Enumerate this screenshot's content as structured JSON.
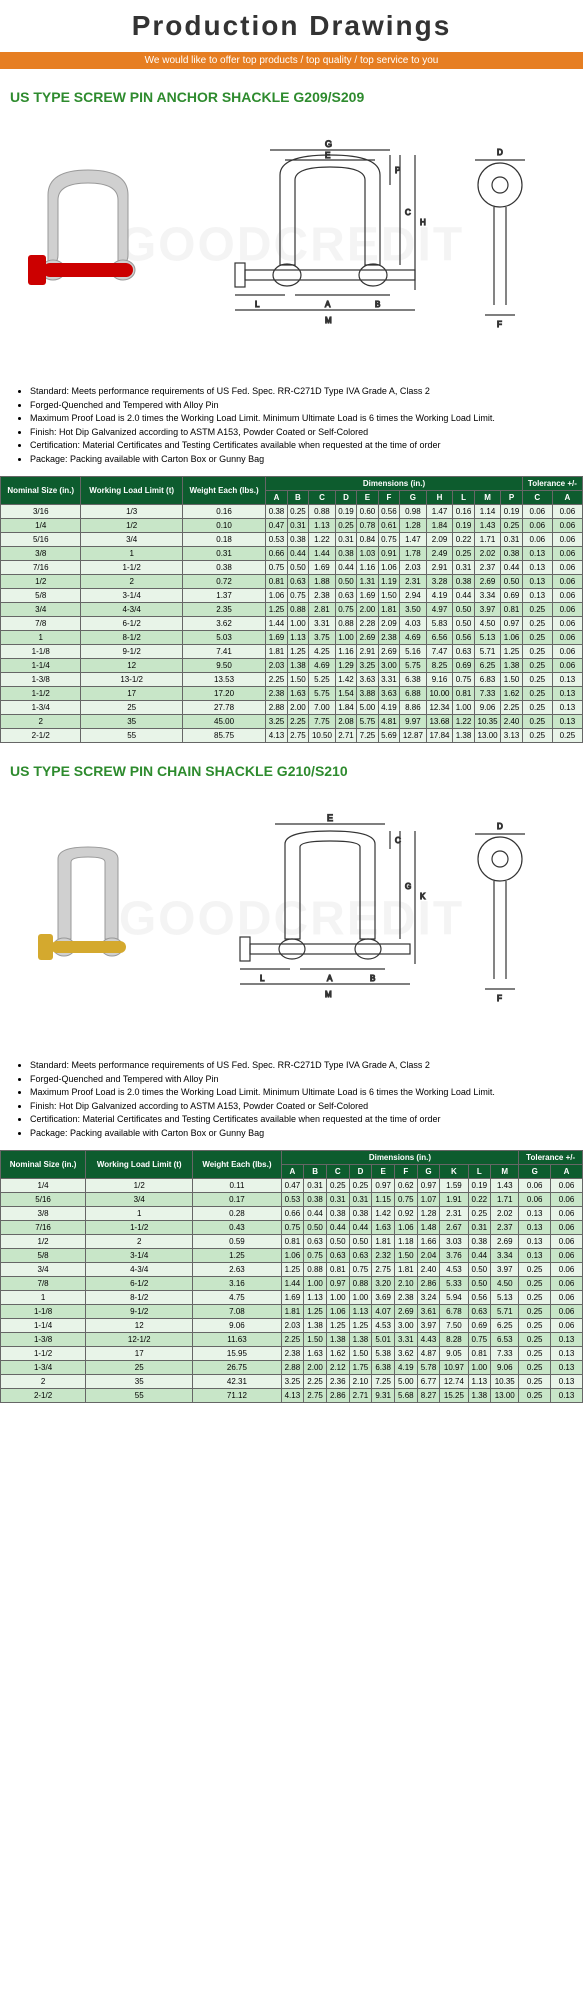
{
  "header": {
    "title": "Production Drawings",
    "subtitle": "We would like to offer top products / top quality / top service to you"
  },
  "watermark": "GOODCREDIT",
  "section1": {
    "title": "US TYPE SCREW PIN ANCHOR SHACKLE G209/S209",
    "bullets": [
      "Standard: Meets performance requirements of US Fed. Spec. RR-C271D Type IVA Grade A, Class 2",
      "Forged-Quenched and Tempered with Alloy Pin",
      "Maximum Proof Load is 2.0 times the Working Load Limit. Minimum Ultimate Load is 6 times the Working Load Limit.",
      "Finish: Hot Dip Galvanized according to ASTM A153, Powder Coated or Self-Colored",
      "Certification: Material Certificates and Testing Certificates available when requested at the time of order",
      "Package: Packing available with Carton Box or Gunny Bag"
    ],
    "headers": {
      "nom": "Nominal Size (in.)",
      "wll": "Working Load Limit (t)",
      "wt": "Weight Each (lbs.)",
      "dim": "Dimensions (in.)",
      "tol": "Tolerance +/-"
    },
    "dimcols": [
      "A",
      "B",
      "C",
      "D",
      "E",
      "F",
      "G",
      "H",
      "L",
      "M",
      "P"
    ],
    "tolcols": [
      "C",
      "A"
    ],
    "rows": [
      [
        "3/16",
        "1/3",
        "0.16",
        "0.38",
        "0.25",
        "0.88",
        "0.19",
        "0.60",
        "0.56",
        "0.98",
        "1.47",
        "0.16",
        "1.14",
        "0.19",
        "0.06",
        "0.06"
      ],
      [
        "1/4",
        "1/2",
        "0.10",
        "0.47",
        "0.31",
        "1.13",
        "0.25",
        "0.78",
        "0.61",
        "1.28",
        "1.84",
        "0.19",
        "1.43",
        "0.25",
        "0.06",
        "0.06"
      ],
      [
        "5/16",
        "3/4",
        "0.18",
        "0.53",
        "0.38",
        "1.22",
        "0.31",
        "0.84",
        "0.75",
        "1.47",
        "2.09",
        "0.22",
        "1.71",
        "0.31",
        "0.06",
        "0.06"
      ],
      [
        "3/8",
        "1",
        "0.31",
        "0.66",
        "0.44",
        "1.44",
        "0.38",
        "1.03",
        "0.91",
        "1.78",
        "2.49",
        "0.25",
        "2.02",
        "0.38",
        "0.13",
        "0.06"
      ],
      [
        "7/16",
        "1-1/2",
        "0.38",
        "0.75",
        "0.50",
        "1.69",
        "0.44",
        "1.16",
        "1.06",
        "2.03",
        "2.91",
        "0.31",
        "2.37",
        "0.44",
        "0.13",
        "0.06"
      ],
      [
        "1/2",
        "2",
        "0.72",
        "0.81",
        "0.63",
        "1.88",
        "0.50",
        "1.31",
        "1.19",
        "2.31",
        "3.28",
        "0.38",
        "2.69",
        "0.50",
        "0.13",
        "0.06"
      ],
      [
        "5/8",
        "3-1/4",
        "1.37",
        "1.06",
        "0.75",
        "2.38",
        "0.63",
        "1.69",
        "1.50",
        "2.94",
        "4.19",
        "0.44",
        "3.34",
        "0.69",
        "0.13",
        "0.06"
      ],
      [
        "3/4",
        "4-3/4",
        "2.35",
        "1.25",
        "0.88",
        "2.81",
        "0.75",
        "2.00",
        "1.81",
        "3.50",
        "4.97",
        "0.50",
        "3.97",
        "0.81",
        "0.25",
        "0.06"
      ],
      [
        "7/8",
        "6-1/2",
        "3.62",
        "1.44",
        "1.00",
        "3.31",
        "0.88",
        "2.28",
        "2.09",
        "4.03",
        "5.83",
        "0.50",
        "4.50",
        "0.97",
        "0.25",
        "0.06"
      ],
      [
        "1",
        "8-1/2",
        "5.03",
        "1.69",
        "1.13",
        "3.75",
        "1.00",
        "2.69",
        "2.38",
        "4.69",
        "6.56",
        "0.56",
        "5.13",
        "1.06",
        "0.25",
        "0.06"
      ],
      [
        "1-1/8",
        "9-1/2",
        "7.41",
        "1.81",
        "1.25",
        "4.25",
        "1.16",
        "2.91",
        "2.69",
        "5.16",
        "7.47",
        "0.63",
        "5.71",
        "1.25",
        "0.25",
        "0.06"
      ],
      [
        "1-1/4",
        "12",
        "9.50",
        "2.03",
        "1.38",
        "4.69",
        "1.29",
        "3.25",
        "3.00",
        "5.75",
        "8.25",
        "0.69",
        "6.25",
        "1.38",
        "0.25",
        "0.06"
      ],
      [
        "1-3/8",
        "13-1/2",
        "13.53",
        "2.25",
        "1.50",
        "5.25",
        "1.42",
        "3.63",
        "3.31",
        "6.38",
        "9.16",
        "0.75",
        "6.83",
        "1.50",
        "0.25",
        "0.13"
      ],
      [
        "1-1/2",
        "17",
        "17.20",
        "2.38",
        "1.63",
        "5.75",
        "1.54",
        "3.88",
        "3.63",
        "6.88",
        "10.00",
        "0.81",
        "7.33",
        "1.62",
        "0.25",
        "0.13"
      ],
      [
        "1-3/4",
        "25",
        "27.78",
        "2.88",
        "2.00",
        "7.00",
        "1.84",
        "5.00",
        "4.19",
        "8.86",
        "12.34",
        "1.00",
        "9.06",
        "2.25",
        "0.25",
        "0.13"
      ],
      [
        "2",
        "35",
        "45.00",
        "3.25",
        "2.25",
        "7.75",
        "2.08",
        "5.75",
        "4.81",
        "9.97",
        "13.68",
        "1.22",
        "10.35",
        "2.40",
        "0.25",
        "0.13"
      ],
      [
        "2-1/2",
        "55",
        "85.75",
        "4.13",
        "2.75",
        "10.50",
        "2.71",
        "7.25",
        "5.69",
        "12.87",
        "17.84",
        "1.38",
        "13.00",
        "3.13",
        "0.25",
        "0.25"
      ]
    ]
  },
  "section2": {
    "title": "US TYPE SCREW PIN CHAIN SHACKLE G210/S210",
    "bullets": [
      "Standard: Meets performance requirements of US Fed. Spec. RR-C271D Type IVA Grade A, Class 2",
      "Forged-Quenched and Tempered with Alloy Pin",
      "Maximum Proof Load is 2.0 times the Working Load Limit. Minimum Ultimate Load is 6 times the Working Load Limit.",
      "Finish: Hot Dip Galvanized according to ASTM A153, Powder Coated or Self-Colored",
      "Certification: Material Certificates and Testing Certificates available when requested at the time of order",
      "Package: Packing available with Carton Box or Gunny Bag"
    ],
    "headers": {
      "nom": "Nominal Size (in.)",
      "wll": "Working Load Limit (t)",
      "wt": "Weight Each (lbs.)",
      "dim": "Dimensions (in.)",
      "tol": "Tolerance +/-"
    },
    "dimcols": [
      "A",
      "B",
      "C",
      "D",
      "E",
      "F",
      "G",
      "K",
      "L",
      "M"
    ],
    "tolcols": [
      "G",
      "A"
    ],
    "rows": [
      [
        "1/4",
        "1/2",
        "0.11",
        "0.47",
        "0.31",
        "0.25",
        "0.25",
        "0.97",
        "0.62",
        "0.97",
        "1.59",
        "0.19",
        "1.43",
        "0.06",
        "0.06"
      ],
      [
        "5/16",
        "3/4",
        "0.17",
        "0.53",
        "0.38",
        "0.31",
        "0.31",
        "1.15",
        "0.75",
        "1.07",
        "1.91",
        "0.22",
        "1.71",
        "0.06",
        "0.06"
      ],
      [
        "3/8",
        "1",
        "0.28",
        "0.66",
        "0.44",
        "0.38",
        "0.38",
        "1.42",
        "0.92",
        "1.28",
        "2.31",
        "0.25",
        "2.02",
        "0.13",
        "0.06"
      ],
      [
        "7/16",
        "1-1/2",
        "0.43",
        "0.75",
        "0.50",
        "0.44",
        "0.44",
        "1.63",
        "1.06",
        "1.48",
        "2.67",
        "0.31",
        "2.37",
        "0.13",
        "0.06"
      ],
      [
        "1/2",
        "2",
        "0.59",
        "0.81",
        "0.63",
        "0.50",
        "0.50",
        "1.81",
        "1.18",
        "1.66",
        "3.03",
        "0.38",
        "2.69",
        "0.13",
        "0.06"
      ],
      [
        "5/8",
        "3-1/4",
        "1.25",
        "1.06",
        "0.75",
        "0.63",
        "0.63",
        "2.32",
        "1.50",
        "2.04",
        "3.76",
        "0.44",
        "3.34",
        "0.13",
        "0.06"
      ],
      [
        "3/4",
        "4-3/4",
        "2.63",
        "1.25",
        "0.88",
        "0.81",
        "0.75",
        "2.75",
        "1.81",
        "2.40",
        "4.53",
        "0.50",
        "3.97",
        "0.25",
        "0.06"
      ],
      [
        "7/8",
        "6-1/2",
        "3.16",
        "1.44",
        "1.00",
        "0.97",
        "0.88",
        "3.20",
        "2.10",
        "2.86",
        "5.33",
        "0.50",
        "4.50",
        "0.25",
        "0.06"
      ],
      [
        "1",
        "8-1/2",
        "4.75",
        "1.69",
        "1.13",
        "1.00",
        "1.00",
        "3.69",
        "2.38",
        "3.24",
        "5.94",
        "0.56",
        "5.13",
        "0.25",
        "0.06"
      ],
      [
        "1-1/8",
        "9-1/2",
        "7.08",
        "1.81",
        "1.25",
        "1.06",
        "1.13",
        "4.07",
        "2.69",
        "3.61",
        "6.78",
        "0.63",
        "5.71",
        "0.25",
        "0.06"
      ],
      [
        "1-1/4",
        "12",
        "9.06",
        "2.03",
        "1.38",
        "1.25",
        "1.25",
        "4.53",
        "3.00",
        "3.97",
        "7.50",
        "0.69",
        "6.25",
        "0.25",
        "0.06"
      ],
      [
        "1-3/8",
        "12-1/2",
        "11.63",
        "2.25",
        "1.50",
        "1.38",
        "1.38",
        "5.01",
        "3.31",
        "4.43",
        "8.28",
        "0.75",
        "6.53",
        "0.25",
        "0.13"
      ],
      [
        "1-1/2",
        "17",
        "15.95",
        "2.38",
        "1.63",
        "1.62",
        "1.50",
        "5.38",
        "3.62",
        "4.87",
        "9.05",
        "0.81",
        "7.33",
        "0.25",
        "0.13"
      ],
      [
        "1-3/4",
        "25",
        "26.75",
        "2.88",
        "2.00",
        "2.12",
        "1.75",
        "6.38",
        "4.19",
        "5.78",
        "10.97",
        "1.00",
        "9.06",
        "0.25",
        "0.13"
      ],
      [
        "2",
        "35",
        "42.31",
        "3.25",
        "2.25",
        "2.36",
        "2.10",
        "7.25",
        "5.00",
        "6.77",
        "12.74",
        "1.13",
        "10.35",
        "0.25",
        "0.13"
      ],
      [
        "2-1/2",
        "55",
        "71.12",
        "4.13",
        "2.75",
        "2.86",
        "2.71",
        "9.31",
        "5.68",
        "8.27",
        "15.25",
        "1.38",
        "13.00",
        "0.25",
        "0.13"
      ]
    ]
  },
  "colors": {
    "green": "#0d5c2e",
    "lightgreen": "#e8f4e8",
    "altgreen": "#c8e6c8",
    "orange": "#e67e22",
    "red": "#cc0000",
    "yellow": "#d4a92e",
    "steel": "#c8c8c8"
  }
}
